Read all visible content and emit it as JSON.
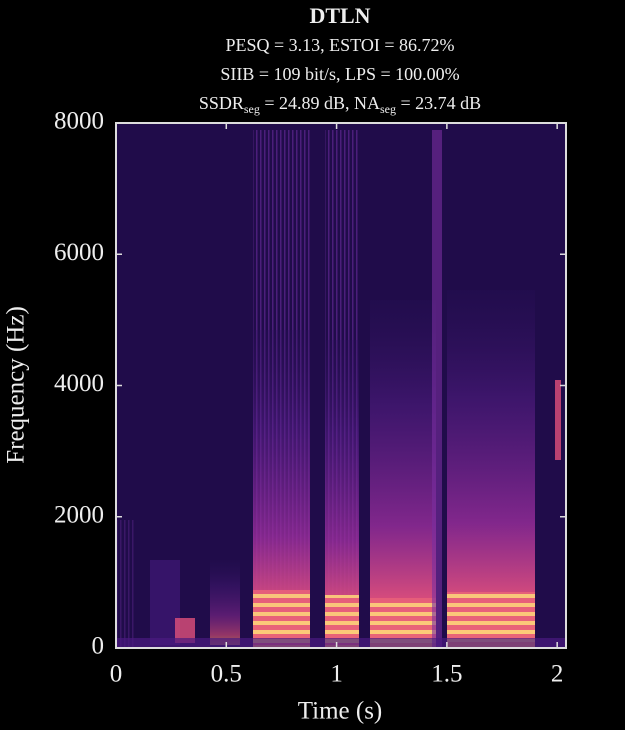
{
  "chart_data": {
    "type": "spectrogram",
    "title": "DTLN",
    "subtitle_lines": [
      [
        "PESQ = 3.13, ESTOI = 86.72%"
      ],
      [
        "SIIB = 109 bit/s, LPS = 100.00%"
      ],
      [
        "SSDR",
        "seg",
        " = 24.89 dB, NA",
        "seg",
        " = 23.74 dB"
      ]
    ],
    "x_label": "Time (s)",
    "y_label": "Frequency (Hz)",
    "xlim": [
      0,
      2.04
    ],
    "xticks": [
      0,
      0.5,
      1,
      1.5,
      2
    ],
    "ylim": [
      0,
      8000
    ],
    "yticks": [
      0,
      2000,
      4000,
      6000,
      8000
    ]
  }
}
